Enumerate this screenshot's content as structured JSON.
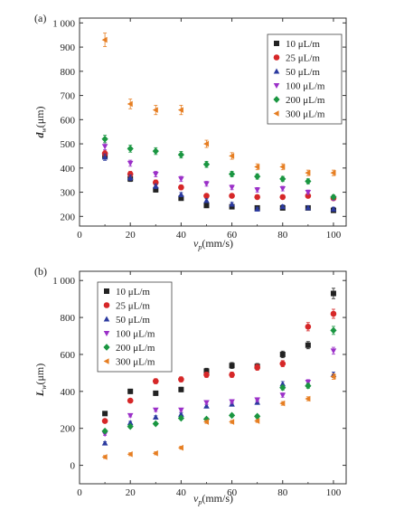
{
  "chart_data": [
    {
      "type": "scatter",
      "panel_label": "(a)",
      "xlabel": "v_p(mm/s)",
      "ylabel": "d_w(μm)",
      "xlim": [
        0,
        105
      ],
      "ylim": [
        160,
        1020
      ],
      "xticks": [
        0,
        20,
        40,
        60,
        80,
        100
      ],
      "yticks": [
        200,
        300,
        400,
        500,
        600,
        700,
        800,
        900,
        1000
      ],
      "ytick_labels": [
        "200",
        "300",
        "400",
        "500",
        "600",
        "700",
        "800",
        "900",
        "1 000"
      ],
      "legend_position": "top-right",
      "x": [
        10,
        20,
        30,
        40,
        50,
        60,
        70,
        80,
        90,
        100
      ],
      "series": [
        {
          "name": "10 μL/m",
          "marker": "square",
          "color": "#222222",
          "values": [
            450,
            355,
            310,
            275,
            245,
            240,
            235,
            235,
            235,
            225
          ]
        },
        {
          "name": "25 μL/m",
          "marker": "circle",
          "color": "#d62728",
          "values": [
            460,
            375,
            340,
            320,
            285,
            285,
            280,
            280,
            285,
            275
          ]
        },
        {
          "name": "50 μL/m",
          "marker": "triangle-up",
          "color": "#2b3a9f",
          "values": [
            445,
            360,
            325,
            290,
            265,
            250,
            230,
            240,
            235,
            230
          ]
        },
        {
          "name": "100 μL/m",
          "marker": "triangle-down",
          "color": "#9b30c8",
          "values": [
            490,
            420,
            375,
            355,
            335,
            320,
            310,
            315,
            300,
            275
          ]
        },
        {
          "name": "200 μL/m",
          "marker": "diamond",
          "color": "#1a9641",
          "values": [
            520,
            480,
            470,
            455,
            415,
            375,
            365,
            355,
            345,
            280
          ]
        },
        {
          "name": "300 μL/m",
          "marker": "triangle-left",
          "color": "#e67e22",
          "values": [
            930,
            665,
            640,
            640,
            500,
            450,
            405,
            405,
            380,
            380
          ]
        }
      ]
    },
    {
      "type": "scatter",
      "panel_label": "(b)",
      "xlabel": "v_p(mm/s)",
      "ylabel": "L_w(μm)",
      "xlim": [
        0,
        105
      ],
      "ylim": [
        -100,
        1050
      ],
      "xticks": [
        0,
        20,
        40,
        60,
        80,
        100
      ],
      "yticks": [
        0,
        200,
        400,
        600,
        800,
        1000
      ],
      "ytick_labels": [
        "0",
        "200",
        "400",
        "600",
        "800",
        "1 000"
      ],
      "legend_position": "top-left",
      "x": [
        10,
        20,
        30,
        40,
        50,
        60,
        70,
        80,
        90,
        100
      ],
      "series": [
        {
          "name": "10 μL/m",
          "marker": "square",
          "color": "#222222",
          "values": [
            280,
            400,
            390,
            410,
            510,
            540,
            535,
            600,
            650,
            930
          ]
        },
        {
          "name": "25 μL/m",
          "marker": "circle",
          "color": "#d62728",
          "values": [
            240,
            350,
            455,
            465,
            490,
            490,
            530,
            550,
            750,
            820
          ]
        },
        {
          "name": "50 μL/m",
          "marker": "triangle-up",
          "color": "#2b3a9f",
          "values": [
            120,
            230,
            260,
            275,
            320,
            330,
            340,
            440,
            440,
            490
          ]
        },
        {
          "name": "100 μL/m",
          "marker": "triangle-down",
          "color": "#9b30c8",
          "values": [
            170,
            270,
            300,
            300,
            340,
            345,
            355,
            380,
            450,
            620
          ]
        },
        {
          "name": "200 μL/m",
          "marker": "diamond",
          "color": "#1a9641",
          "values": [
            185,
            210,
            225,
            255,
            250,
            270,
            265,
            420,
            430,
            730
          ]
        },
        {
          "name": "300 μL/m",
          "marker": "triangle-left",
          "color": "#e67e22",
          "values": [
            45,
            60,
            65,
            95,
            235,
            235,
            240,
            335,
            360,
            480
          ]
        }
      ]
    }
  ]
}
